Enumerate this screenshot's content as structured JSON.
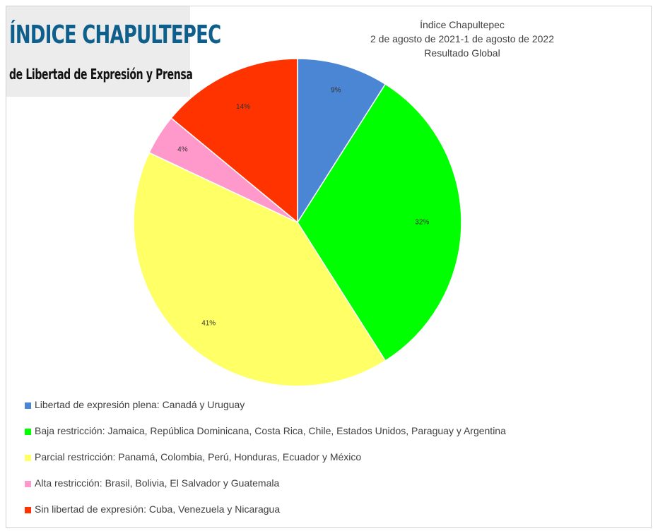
{
  "logo": {
    "line1": "ÍNDICE CHAPULTEPEC",
    "line2": "de Libertad de Expresión y Prensa"
  },
  "chart_data": {
    "type": "pie",
    "title": [
      "Índice Chapultepec",
      "2 de agosto de 2021-1 de agosto de 2022",
      "Resultado Global"
    ],
    "slices": [
      {
        "label": "Libertad de expresión plena: Canadá y Uruguay",
        "value": 9,
        "data_label": "9%",
        "color": "#4a86d4"
      },
      {
        "label": "Baja restricción: Jamaica, República Dominicana, Costa Rica, Chile, Estados Unidos, Paraguay y Argentina",
        "value": 32,
        "data_label": "32%",
        "color": "#00ff00"
      },
      {
        "label": "Parcial restricción: Panamá, Colombia, Perú, Honduras, Ecuador y México",
        "value": 41,
        "data_label": "41%",
        "color": "#ffff66"
      },
      {
        "label": "Alta restricción: Brasil, Bolivia, El Salvador y Guatemala",
        "value": 4,
        "data_label": "4%",
        "color": "#ff99cc"
      },
      {
        "label": "Sin libertad de expresión: Cuba, Venezuela y Nicaragua",
        "value": 14,
        "data_label": "14%",
        "color": "#ff3300"
      }
    ],
    "legend_position": "bottom"
  }
}
